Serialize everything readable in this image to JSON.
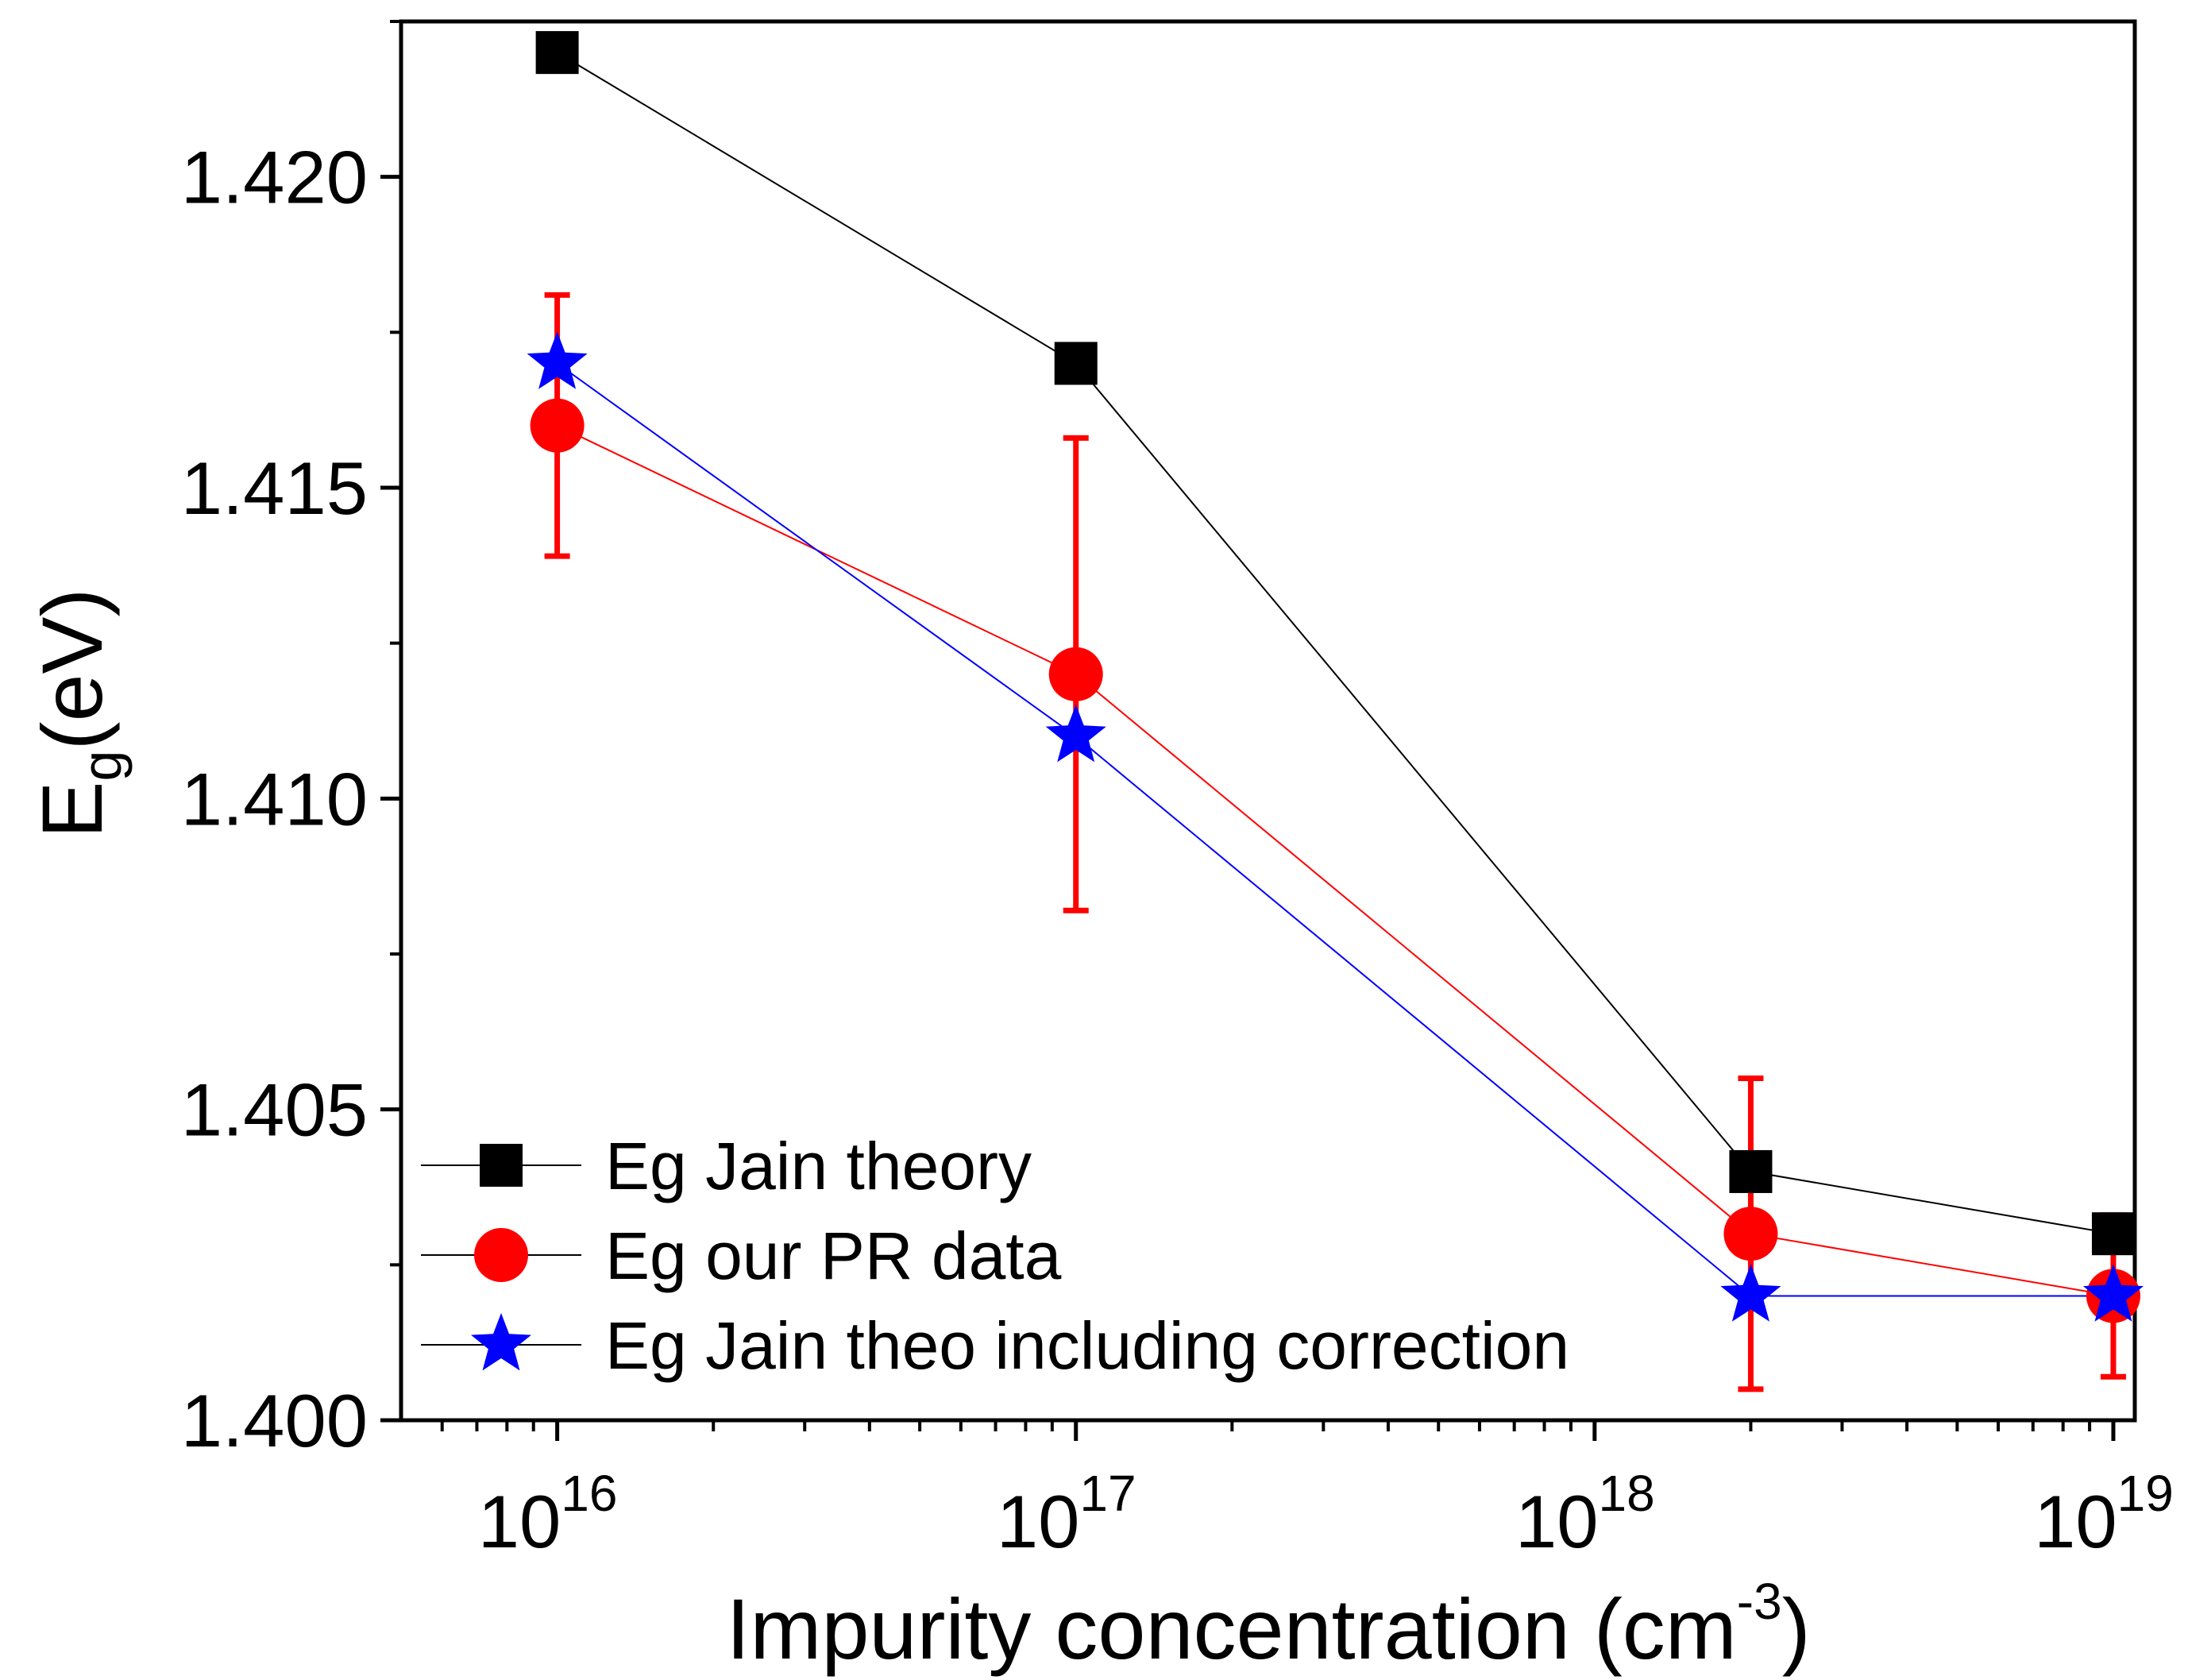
{
  "chart_data": {
    "type": "line",
    "title": "",
    "xlabel": "Impurity concentration (cm",
    "xlabel_superscript": "-3",
    "xlabel_suffix": ")",
    "ylabel": "E",
    "ylabel_subscript": "g",
    "ylabel_suffix": "(eV)",
    "x_scale": "log",
    "xlim": [
      5000000000000000.0,
      1.1e+19
    ],
    "ylim": [
      1.4,
      1.4225
    ],
    "x_ticks": [
      {
        "value": 1e+16,
        "base": "10",
        "exp": "16"
      },
      {
        "value": 1e+17,
        "base": "10",
        "exp": "17"
      },
      {
        "value": 1e+18,
        "base": "10",
        "exp": "18"
      },
      {
        "value": 1e+19,
        "base": "10",
        "exp": "19"
      }
    ],
    "y_ticks": [
      {
        "value": 1.4,
        "label": "1.400"
      },
      {
        "value": 1.405,
        "label": "1.405"
      },
      {
        "value": 1.41,
        "label": "1.410"
      },
      {
        "value": 1.415,
        "label": "1.415"
      },
      {
        "value": 1.42,
        "label": "1.420"
      }
    ],
    "legend_position": "bottom-left",
    "series": [
      {
        "name": "Eg Jain theory",
        "color": "#000000",
        "marker": "square",
        "x": [
          1e+16,
          1e+17,
          2e+18,
          1e+19
        ],
        "y": [
          1.422,
          1.417,
          1.404,
          1.403
        ]
      },
      {
        "name": "Eg our PR data",
        "color": "#ff0000",
        "marker": "circle",
        "x": [
          1e+16,
          1e+17,
          2e+18,
          1e+19
        ],
        "y": [
          1.416,
          1.412,
          1.403,
          1.402
        ],
        "error": [
          0.0021,
          0.0038,
          0.0025,
          0.0013
        ]
      },
      {
        "name": "Eg Jain theo including correction",
        "color": "#0000ff",
        "marker": "star",
        "x": [
          1e+16,
          1e+17,
          2e+18,
          1e+19
        ],
        "y": [
          1.417,
          1.411,
          1.402,
          1.402
        ]
      }
    ]
  }
}
